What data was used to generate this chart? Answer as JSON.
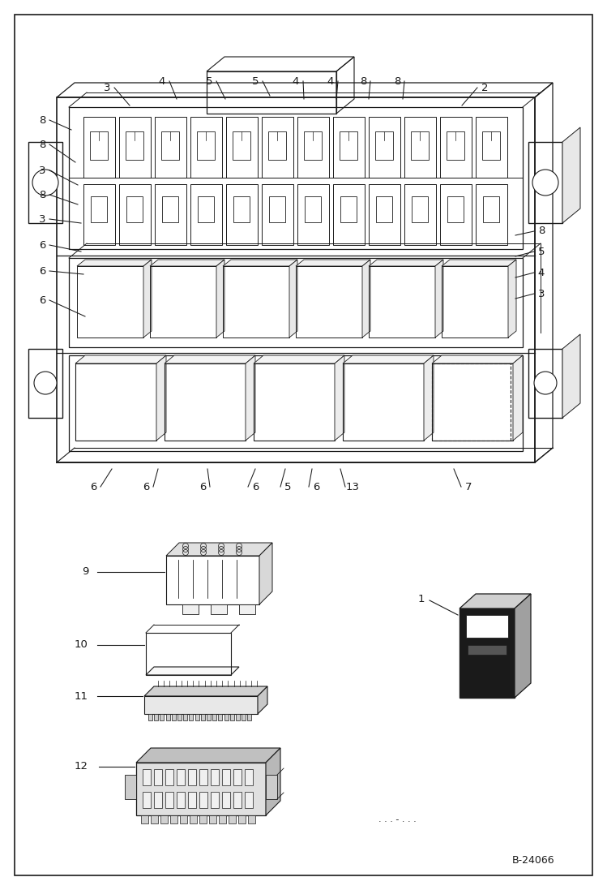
{
  "bg": "#ffffff",
  "lc": "#1a1a1a",
  "fig_code": "B-24066",
  "fig_w": 7.49,
  "fig_h": 10.97,
  "dpi": 100
}
